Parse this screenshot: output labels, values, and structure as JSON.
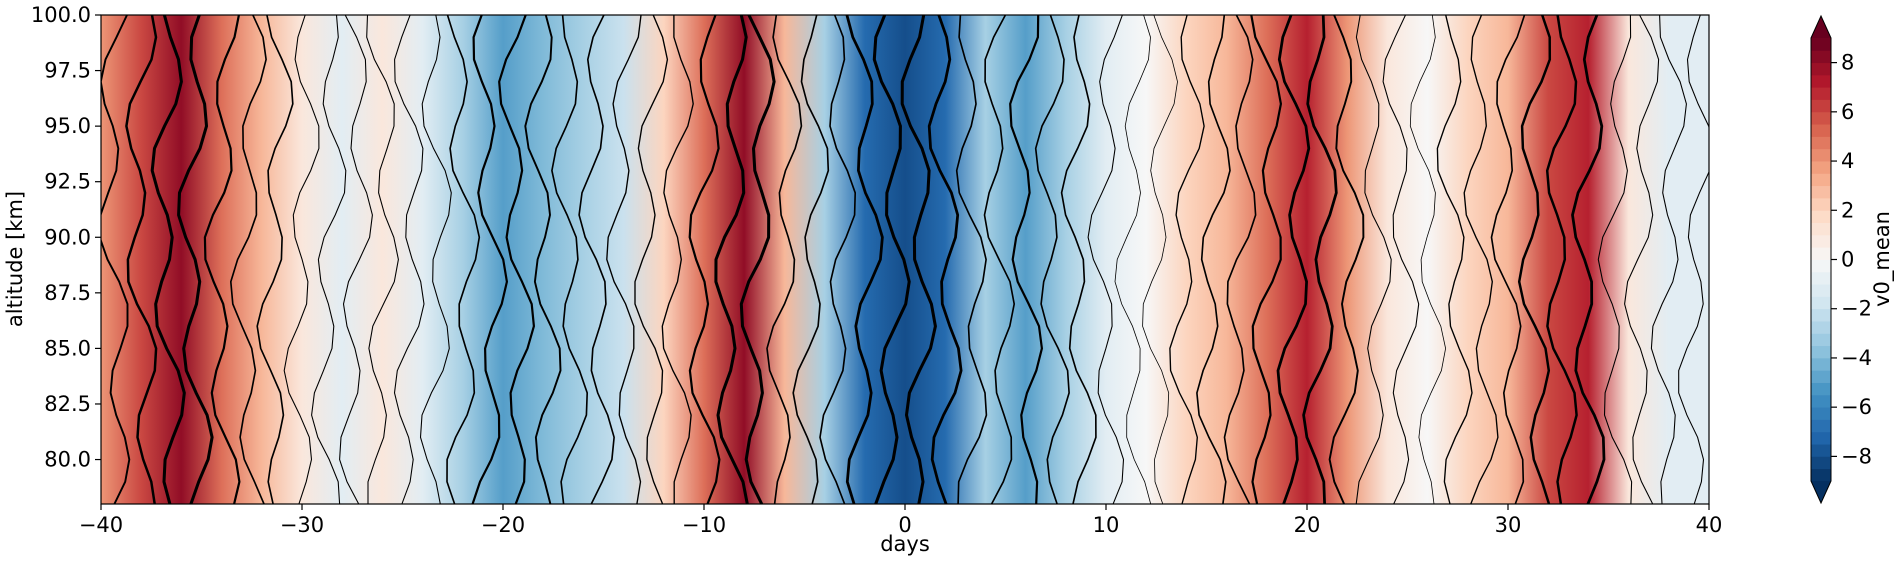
{
  "chart_data": {
    "type": "heatmap",
    "xlabel": "days",
    "ylabel": "altitude [km]",
    "colorbar_label": "v0_mean",
    "colormap": "RdBu_r",
    "xlim": [
      -40,
      40
    ],
    "ylim": [
      78,
      100
    ],
    "x_ticks": [
      -40,
      -30,
      -20,
      -10,
      0,
      10,
      20,
      30,
      40
    ],
    "x_tick_labels": [
      "−40",
      "−30",
      "−20",
      "−10",
      "0",
      "10",
      "20",
      "30",
      "40"
    ],
    "y_ticks": [
      80.0,
      82.5,
      85.0,
      87.5,
      90.0,
      92.5,
      95.0,
      97.5,
      100.0
    ],
    "y_tick_labels": [
      "80.0",
      "82.5",
      "85.0",
      "87.5",
      "90.0",
      "92.5",
      "95.0",
      "97.5",
      "100.0"
    ],
    "colorbar_ticks": [
      -8,
      -6,
      -4,
      -2,
      0,
      2,
      4,
      6,
      8
    ],
    "colorbar_tick_labels": [
      "−8",
      "−6",
      "−4",
      "−2",
      "0",
      "2",
      "4",
      "6",
      "8"
    ],
    "colorbar_range": [
      -9,
      9
    ],
    "colorbar_extend": "both",
    "grid": false,
    "days": [
      -40,
      -38,
      -36,
      -34,
      -32,
      -30,
      -28,
      -26,
      -24,
      -22,
      -20,
      -18,
      -16,
      -14,
      -12,
      -10,
      -8,
      -6,
      -4,
      -2,
      0,
      2,
      4,
      6,
      8,
      10,
      12,
      14,
      16,
      18,
      20,
      22,
      24,
      26,
      28,
      30,
      32,
      34,
      36,
      38,
      40
    ],
    "v0_mean_profile": [
      4,
      6,
      8,
      5,
      3,
      1,
      -1,
      1,
      -1,
      -3,
      -5,
      -4,
      -3,
      -2,
      2,
      5,
      8,
      3,
      -3,
      -7,
      -8,
      -7,
      -3,
      -5,
      -3,
      -1,
      0,
      2,
      3,
      5,
      7,
      4,
      1,
      0,
      2,
      3,
      6,
      7,
      1,
      -1,
      -1
    ],
    "contour_overlay": "black line contours, line width increasing with magnitude"
  }
}
